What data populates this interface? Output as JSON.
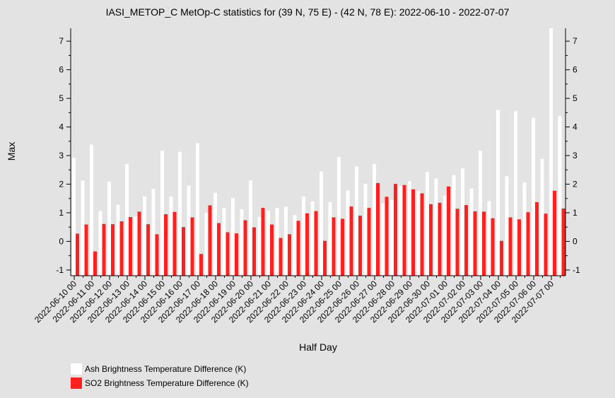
{
  "chart_data": {
    "type": "bar",
    "title": "IASI_METOP_C MetOp-C statistics for (39 N, 75 E) - (42 N, 78 E): 2022-06-10 - 2022-07-07",
    "xlabel": "Half Day",
    "ylabel": "Max",
    "ylim": [
      -1.2,
      7.45
    ],
    "yticks": [
      -1,
      0,
      1,
      2,
      3,
      4,
      5,
      6,
      7
    ],
    "grid": false,
    "legend_position": "bottom-left",
    "tick_labels": [
      "2022-06-10 00",
      "2022-06-11 00",
      "2022-06-12 00",
      "2022-06-13 00",
      "2022-06-14 00",
      "2022-06-15 00",
      "2022-06-16 00",
      "2022-06-17 00",
      "2022-06-18 00",
      "2022-06-19 00",
      "2022-06-20 00",
      "2022-06-21 00",
      "2022-06-22 00",
      "2022-06-23 00",
      "2022-06-24 00",
      "2022-06-25 00",
      "2022-06-26 00",
      "2022-06-27 00",
      "2022-06-28 00",
      "2022-06-29 00",
      "2022-06-30 00",
      "2022-07-01 00",
      "2022-07-02 00",
      "2022-07-03 00",
      "2022-07-04 00",
      "2022-07-05 00",
      "2022-07-06 00",
      "2022-07-07 00"
    ],
    "series": [
      {
        "name": "Ash Brightness Temperature Difference (K)",
        "color": "#ffffff",
        "values": [
          2.92,
          2.12,
          3.38,
          1.06,
          2.09,
          1.28,
          2.71,
          0.87,
          1.57,
          1.83,
          3.17,
          1.57,
          3.13,
          1.95,
          3.43,
          0.99,
          1.7,
          1.17,
          1.51,
          1.12,
          2.13,
          0.85,
          1.08,
          1.17,
          1.21,
          0.92,
          1.57,
          1.4,
          2.44,
          1.37,
          2.95,
          1.78,
          2.62,
          2.01,
          2.71,
          1.33,
          1.45,
          1.93,
          2.1,
          1.75,
          2.43,
          2.2,
          1.6,
          2.32,
          2.55,
          1.85,
          3.17,
          1.41,
          4.6,
          2.28,
          4.55,
          2.06,
          4.32,
          2.88,
          7.45,
          4.39
        ]
      },
      {
        "name": "SO2 Brightness Temperature Difference (K)",
        "color": "#ff2020",
        "values": [
          0.27,
          0.59,
          -0.35,
          0.61,
          0.6,
          0.7,
          0.85,
          1.04,
          0.6,
          0.25,
          0.95,
          1.03,
          0.5,
          0.84,
          -0.44,
          1.26,
          0.64,
          0.32,
          0.28,
          0.74,
          0.49,
          1.17,
          0.59,
          0.12,
          0.25,
          0.72,
          0.98,
          1.06,
          0.02,
          0.84,
          0.79,
          1.22,
          0.9,
          1.17,
          2.04,
          1.56,
          2.01,
          1.97,
          1.82,
          1.68,
          1.3,
          1.35,
          1.92,
          1.14,
          1.27,
          1.05,
          1.04,
          0.81,
          0.02,
          0.84,
          0.77,
          1.02,
          1.37,
          0.97,
          1.77,
          1.15
        ]
      }
    ]
  }
}
